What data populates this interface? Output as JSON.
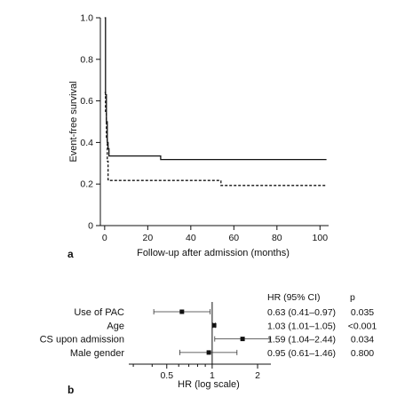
{
  "chart_data": [
    {
      "panel": "a",
      "type": "line",
      "xlabel": "Follow-up after admission (months)",
      "ylabel": "Event-free survival",
      "xlim": [
        -2,
        104
      ],
      "ylim": [
        0,
        1.0
      ],
      "xticks": [
        "0",
        "20",
        "40",
        "60",
        "80",
        "100"
      ],
      "yticks": [
        "0",
        "0.2",
        "0.4",
        "0.6",
        "0.8",
        "1.0"
      ],
      "grid": false,
      "series": [
        {
          "style": "solid",
          "points": [
            [
              0,
              1.0
            ],
            [
              0.4,
              1.0
            ],
            [
              0.4,
              0.63
            ],
            [
              0.8,
              0.63
            ],
            [
              0.8,
              0.5
            ],
            [
              1.2,
              0.5
            ],
            [
              1.2,
              0.4
            ],
            [
              1.6,
              0.4
            ],
            [
              1.6,
              0.37
            ],
            [
              2,
              0.37
            ],
            [
              2,
              0.335
            ],
            [
              26,
              0.335
            ],
            [
              26,
              0.318
            ],
            [
              103,
              0.318
            ]
          ]
        },
        {
          "style": "dashed",
          "points": [
            [
              0,
              0.64
            ],
            [
              0.4,
              0.64
            ],
            [
              0.4,
              0.55
            ],
            [
              0.8,
              0.55
            ],
            [
              0.8,
              0.42
            ],
            [
              1.2,
              0.42
            ],
            [
              1.2,
              0.31
            ],
            [
              1.6,
              0.31
            ],
            [
              1.6,
              0.22
            ],
            [
              2,
              0.22
            ],
            [
              2,
              0.217
            ],
            [
              54,
              0.217
            ],
            [
              54,
              0.193
            ],
            [
              103,
              0.193
            ]
          ]
        }
      ]
    },
    {
      "panel": "b",
      "type": "scatter",
      "subtype": "forest",
      "xlabel": "HR (log scale)",
      "xscale": "log",
      "xlim": [
        0.28,
        2.45
      ],
      "reference_line": 1,
      "xticks": [
        "0.5",
        "1",
        "2"
      ],
      "col_headers": [
        "HR (95% CI)",
        "p"
      ],
      "rows": [
        {
          "label": "Use of PAC",
          "hr": 0.63,
          "lo": 0.41,
          "hi": 0.97,
          "ci_text": "0.63 (0.41–0.97)",
          "p": "0.035"
        },
        {
          "label": "Age",
          "hr": 1.03,
          "lo": 1.01,
          "hi": 1.05,
          "ci_text": "1.03 (1.01–1.05)",
          "p": "<0.001"
        },
        {
          "label": "CS upon admission",
          "hr": 1.59,
          "lo": 1.04,
          "hi": 2.44,
          "ci_text": "1.59 (1.04–2.44)",
          "p": "0.034"
        },
        {
          "label": "Male gender",
          "hr": 0.95,
          "lo": 0.61,
          "hi": 1.46,
          "ci_text": "0.95 (0.61–1.46)",
          "p": "0.800"
        }
      ]
    }
  ]
}
